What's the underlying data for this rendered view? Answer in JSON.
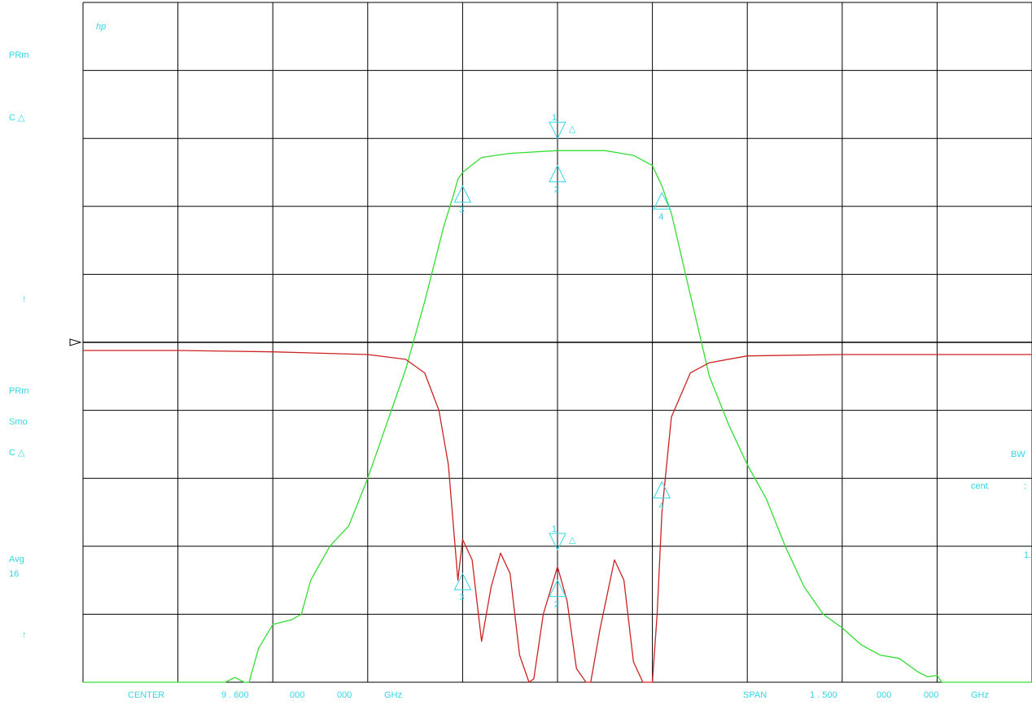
{
  "colors": {
    "grid": "#000000",
    "text": "#33d6e6",
    "trace_transmission": "#33dd33",
    "trace_reflection": "#cc2222",
    "markers": "#33d6e6"
  },
  "left_panel": {
    "top_mode": "PRm",
    "top_delta": "C △",
    "top_arrow": "↑",
    "bottom_mode": "PRm",
    "smoothing": "Smo",
    "bottom_delta": "C △",
    "avg_label": "Avg",
    "avg_count": "16",
    "bottom_arrow": "↑"
  },
  "right_panel": {
    "bw": "BW",
    "cent": "cent",
    "colon": ":",
    "partial": "1."
  },
  "hp_logo": "hp",
  "footer": {
    "center_label": "CENTER",
    "center_value": "9 . 600",
    "center_group2": "000",
    "center_group3": "000",
    "center_unit": "GHz",
    "span_label": "SPAN",
    "span_value": "1 . 500",
    "span_group2": "000",
    "span_group3": "000",
    "span_unit": "GHz"
  },
  "chart_data": {
    "type": "line",
    "grid": true,
    "x_divisions": 10,
    "y_divisions": 10,
    "x_range_div": [
      0,
      10
    ],
    "y_range_div": [
      0,
      10
    ],
    "reference_line_div": 5,
    "series": [
      {
        "key": "transmission",
        "x": [
          0,
          1.5,
          1.6,
          1.7,
          1.75,
          1.85,
          2.0,
          2.2,
          2.3,
          2.4,
          2.6,
          2.8,
          3.0,
          3.2,
          3.4,
          3.6,
          3.8,
          3.9,
          3.95,
          4.0,
          4.2,
          4.5,
          5.0,
          5.5,
          5.8,
          6.0,
          6.05,
          6.1,
          6.2,
          6.4,
          6.6,
          6.8,
          7.0,
          7.2,
          7.4,
          7.6,
          7.8,
          8.0,
          8.2,
          8.4,
          8.6,
          8.8,
          8.9,
          9.0,
          9.05,
          9.1,
          9.2,
          9.3,
          10.0
        ],
        "y": [
          0.0,
          0.0,
          0.07,
          0.0,
          0.0,
          0.5,
          0.85,
          0.92,
          1.0,
          1.5,
          2.0,
          2.3,
          3.0,
          3.8,
          4.6,
          5.6,
          6.7,
          7.15,
          7.4,
          7.5,
          7.72,
          7.78,
          7.82,
          7.82,
          7.75,
          7.6,
          7.45,
          7.3,
          6.9,
          5.7,
          4.5,
          3.8,
          3.2,
          2.7,
          2.0,
          1.4,
          1.0,
          0.8,
          0.55,
          0.4,
          0.35,
          0.15,
          0.08,
          0.1,
          0.0,
          0.0,
          0.0,
          0.0,
          0.0
        ]
      },
      {
        "key": "reflection",
        "x": [
          0,
          1.0,
          2.0,
          3.0,
          3.4,
          3.6,
          3.75,
          3.85,
          3.95,
          4.0,
          4.1,
          4.2,
          4.3,
          4.4,
          4.5,
          4.6,
          4.7,
          4.75,
          4.85,
          5.0,
          5.1,
          5.2,
          5.3,
          5.35,
          5.45,
          5.6,
          5.7,
          5.8,
          5.9,
          6.0,
          6.05,
          6.1,
          6.2,
          6.4,
          6.6,
          7.0,
          8.0,
          9.0,
          10.0
        ],
        "y": [
          4.88,
          4.88,
          4.86,
          4.82,
          4.75,
          4.55,
          4.0,
          3.2,
          1.5,
          2.1,
          1.8,
          0.6,
          1.4,
          1.9,
          1.6,
          0.4,
          0.0,
          0.05,
          1.0,
          1.7,
          1.2,
          0.2,
          0.0,
          0.0,
          0.8,
          1.8,
          1.5,
          0.3,
          0.0,
          0.0,
          1.0,
          2.5,
          3.9,
          4.55,
          4.7,
          4.8,
          4.82,
          4.82,
          4.82
        ]
      }
    ],
    "markers_upper": [
      {
        "label": "3",
        "x": 4.0,
        "y": 7.3,
        "type": "up"
      },
      {
        "label": "2",
        "x": 5.0,
        "y": 7.6,
        "type": "up"
      },
      {
        "label": "1",
        "x": 5.0,
        "y": 8.0,
        "type": "down"
      },
      {
        "label": "△",
        "x": 5.12,
        "y": 8.1,
        "type": "text"
      },
      {
        "label": "4",
        "x": 6.1,
        "y": 7.2,
        "type": "up"
      }
    ],
    "markers_lower": [
      {
        "label": "3",
        "x": 4.0,
        "y": 1.6,
        "type": "up"
      },
      {
        "label": "2",
        "x": 5.0,
        "y": 1.5,
        "type": "up"
      },
      {
        "label": "1",
        "x": 5.0,
        "y": 1.95,
        "type": "down"
      },
      {
        "label": "△",
        "x": 5.12,
        "y": 2.05,
        "type": "text"
      },
      {
        "label": "4",
        "x": 6.1,
        "y": 2.95,
        "type": "up"
      }
    ]
  }
}
